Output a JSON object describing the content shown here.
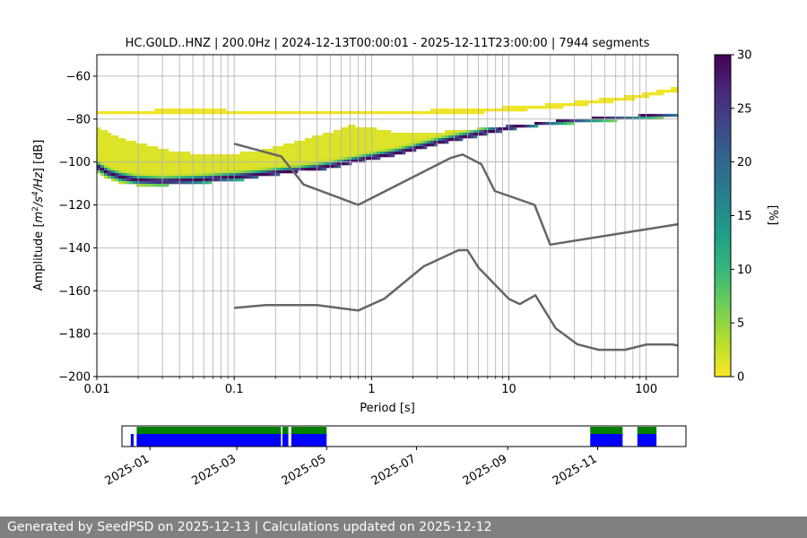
{
  "footer_text": "Generated by SeedPSD on 2025-12-13 | Calculations updated on 2025-12-12",
  "chart_data": [
    {
      "type": "heatmap",
      "title": "HC.G0LD..HNZ | 200.0Hz | 2024-12-13T00:00:01 - 2025-12-11T23:00:00 | 7944 segments",
      "xlabel": "Period [s]",
      "ylabel": "Amplitude [m²/s⁴/Hz] [dB]",
      "x_scale": "log",
      "xlim": [
        0.01,
        170
      ],
      "ylim": [
        -200,
        -50
      ],
      "x_ticks": [
        0.01,
        0.1,
        1,
        10,
        100
      ],
      "x_tick_labels": [
        "0.01",
        "0.1",
        "1",
        "10",
        "100"
      ],
      "y_ticks": [
        -200,
        -180,
        -160,
        -140,
        -120,
        -100,
        -80,
        -60
      ],
      "y_tick_labels": [
        "−200",
        "−180",
        "−160",
        "−140",
        "−120",
        "−100",
        "−80",
        "−60"
      ],
      "grid": true,
      "colorbar": {
        "label": "[%]",
        "range": [
          0,
          30
        ],
        "ticks": [
          0,
          5,
          10,
          15,
          20,
          25,
          30
        ],
        "colormap": [
          "#fde725",
          "#b5de2b",
          "#6ece58",
          "#35b779",
          "#1f9e89",
          "#26828e",
          "#31688e",
          "#3e4989",
          "#482878",
          "#440154"
        ]
      },
      "pdf_ridge": {
        "period": [
          0.01,
          0.012,
          0.015,
          0.02,
          0.03,
          0.05,
          0.1,
          0.15,
          0.2,
          0.3,
          0.5,
          0.7,
          1,
          1.5,
          2,
          3,
          5,
          7,
          10,
          15,
          20,
          30,
          50,
          100,
          170
        ],
        "amplitude_db": [
          -102,
          -105,
          -107,
          -108.5,
          -109,
          -108.5,
          -107,
          -106,
          -105,
          -104,
          -102,
          -100,
          -98,
          -96,
          -94,
          -91,
          -88,
          -86,
          -84,
          -82,
          -81,
          -80,
          -79,
          -78,
          -77
        ]
      },
      "pdf_band_top": [
        -84,
        -86,
        -89,
        -91,
        -94,
        -96,
        -96,
        -95,
        -93,
        -90,
        -86,
        -83,
        -84,
        -86,
        -87,
        -86,
        -85,
        -84,
        -83,
        -82,
        -81,
        -80,
        -79,
        -78,
        -77
      ],
      "pdf_band_bottom": [
        -104,
        -108,
        -110,
        -111,
        -111,
        -110,
        -109,
        -107,
        -106,
        -104.5,
        -103,
        -101,
        -99,
        -97,
        -95,
        -92,
        -89,
        -87,
        -85,
        -83.5,
        -82.5,
        -82,
        -81,
        -80,
        -79
      ],
      "pdf_sparse_upper_line": {
        "period": [
          0.01,
          0.05,
          0.2,
          1,
          5,
          20,
          80,
          170
        ],
        "amplitude_db": [
          -77,
          -76.5,
          -77,
          -77,
          -76.5,
          -74,
          -70,
          -66
        ]
      },
      "series": [
        {
          "role": "upper-noise-model",
          "color": "#666666",
          "period": [
            0.1,
            0.22,
            0.32,
            0.8,
            3.8,
            4.6,
            6.3,
            7.9,
            15.4,
            20,
            170
          ],
          "amplitude_db": [
            -91.5,
            -97.4,
            -110.5,
            -120,
            -98,
            -96.5,
            -101,
            -113.5,
            -120,
            -138.5,
            -129
          ]
        },
        {
          "role": "lower-noise-model",
          "color": "#666666",
          "period": [
            0.1,
            0.17,
            0.4,
            0.8,
            1.24,
            2.4,
            4.3,
            5.0,
            6.0,
            10,
            12,
            15.6,
            21.9,
            31.6,
            45,
            70,
            101,
            154,
            170
          ],
          "amplitude_db": [
            -168,
            -166.7,
            -166.7,
            -169.2,
            -163.7,
            -148.6,
            -141.1,
            -141.1,
            -149.1,
            -163.8,
            -166.2,
            -162.1,
            -177.5,
            -185,
            -187.5,
            -187.5,
            -185,
            -185,
            -185.5
          ]
        }
      ]
    },
    {
      "type": "timeline",
      "x_tick_labels": [
        "2025-01",
        "2025-03",
        "2025-05",
        "2025-07",
        "2025-09",
        "2025-11"
      ],
      "x_ticks": [
        "2025-01-01",
        "2025-03-01",
        "2025-05-01",
        "2025-07-01",
        "2025-09-01",
        "2025-11-01"
      ],
      "xlim": [
        "2024-12-13",
        "2025-12-31"
      ],
      "segments": [
        {
          "start": "2024-12-19",
          "end": "2024-12-21",
          "color": "#0000ff"
        },
        {
          "start": "2024-12-23",
          "end": "2025-03-31",
          "color": "#0000ff"
        },
        {
          "start": "2025-04-01",
          "end": "2025-04-05",
          "color": "#0000ff"
        },
        {
          "start": "2025-04-07",
          "end": "2025-05-01",
          "color": "#0000ff"
        },
        {
          "start": "2025-10-27",
          "end": "2025-11-18",
          "color": "#0000ff"
        },
        {
          "start": "2025-11-28",
          "end": "2025-12-11",
          "color": "#0000ff"
        },
        {
          "start": "2024-12-23",
          "end": "2025-03-31",
          "color": "#008000",
          "tier": "upper"
        },
        {
          "start": "2025-04-01",
          "end": "2025-04-05",
          "color": "#008000",
          "tier": "upper"
        },
        {
          "start": "2025-04-07",
          "end": "2025-05-01",
          "color": "#008000",
          "tier": "upper"
        },
        {
          "start": "2025-10-27",
          "end": "2025-11-18",
          "color": "#008000",
          "tier": "upper"
        },
        {
          "start": "2025-11-28",
          "end": "2025-12-11",
          "color": "#008000",
          "tier": "upper"
        }
      ]
    }
  ]
}
